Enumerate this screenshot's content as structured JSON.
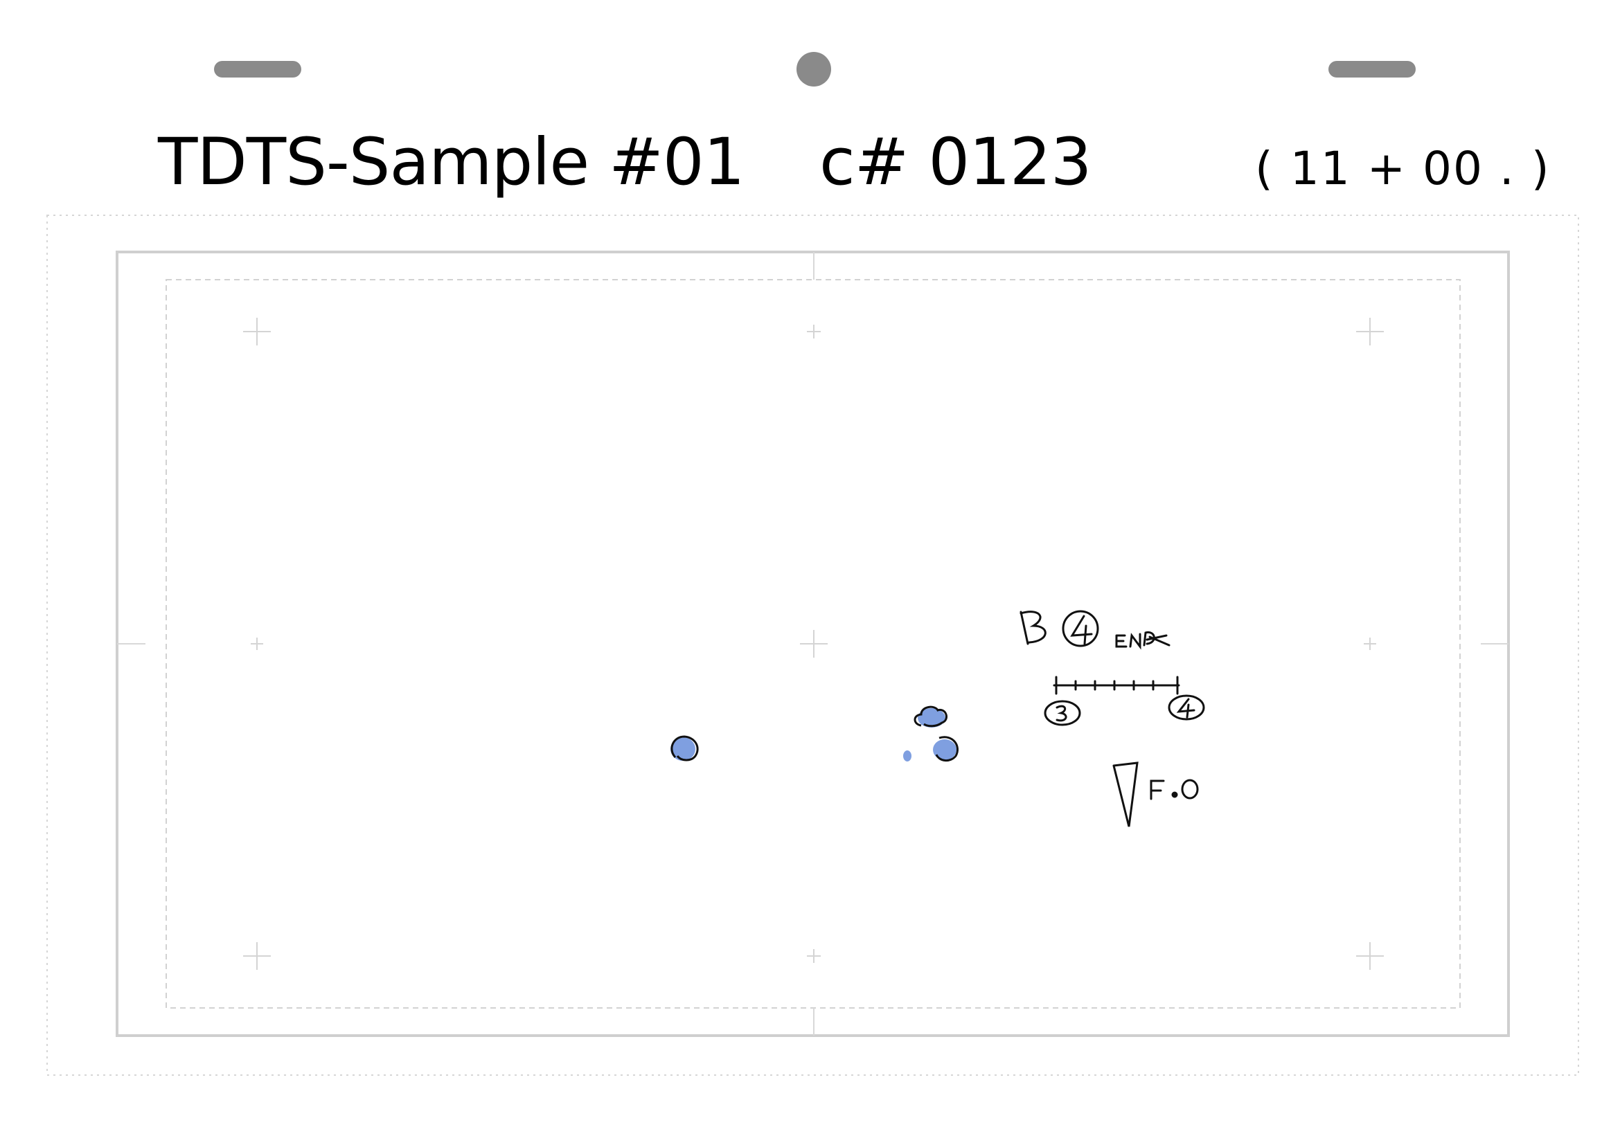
{
  "header": {
    "title": "TDTS-Sample #01",
    "cut_label": "c# 0123",
    "duration": "( 11 + 00 . )"
  },
  "annotations": {
    "key_label": "B④",
    "small_label": "END",
    "start_mark": "③",
    "end_mark": "④",
    "fade_label": "F.O"
  },
  "colors": {
    "frame_line": "#cfcfcf",
    "guide_line": "#d8d8d8",
    "peg": "#8a8a8a",
    "blot_fill": "#7f9fe0",
    "ink": "#111111"
  }
}
